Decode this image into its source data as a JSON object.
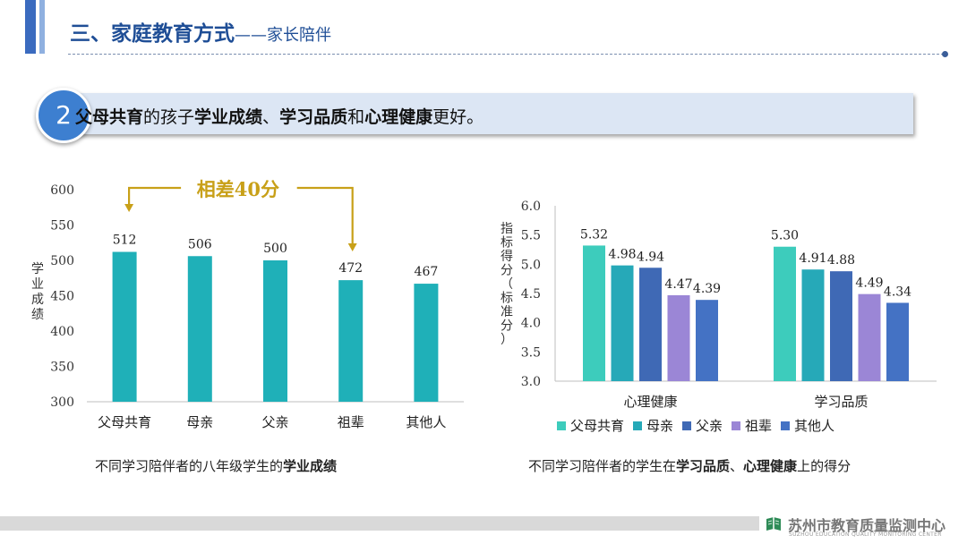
{
  "header": {
    "title": "三、家庭教育方式",
    "subtitle": "——家长陪伴"
  },
  "banner": {
    "number": "2",
    "parts": [
      {
        "text": "父母共育",
        "bold": true
      },
      {
        "text": "的孩子",
        "bold": false
      },
      {
        "text": "学业成绩",
        "bold": true
      },
      {
        "text": "、",
        "bold": false
      },
      {
        "text": "学习品质",
        "bold": true
      },
      {
        "text": "和",
        "bold": false
      },
      {
        "text": "心理健康",
        "bold": true
      },
      {
        "text": "更好。",
        "bold": false
      }
    ]
  },
  "chart_data": [
    {
      "type": "bar",
      "categories": [
        "父母共育",
        "母亲",
        "父亲",
        "祖辈",
        "其他人"
      ],
      "values": [
        512,
        506,
        500,
        472,
        467
      ],
      "ylabel": "学业成绩",
      "ylim": [
        300,
        600
      ],
      "yticks": [
        "300",
        "350",
        "400",
        "450",
        "500",
        "550",
        "600"
      ],
      "data_labels": [
        "512",
        "506",
        "500",
        "472",
        "467"
      ],
      "annotation": {
        "prefix": "相差",
        "number": "40",
        "suffix": "分"
      },
      "color": "#1fb0b8",
      "grid": false
    },
    {
      "type": "bar",
      "categories": [
        "心理健康",
        "学习品质"
      ],
      "series": [
        {
          "name": "父母共育",
          "values": [
            5.32,
            5.3
          ],
          "labels": [
            "5.32",
            "5.30"
          ],
          "color": "#3dccbc"
        },
        {
          "name": "母亲",
          "values": [
            4.98,
            4.91
          ],
          "labels": [
            "4.98",
            "4.91"
          ],
          "color": "#26a9b8"
        },
        {
          "name": "父亲",
          "values": [
            4.94,
            4.88
          ],
          "labels": [
            "4.94",
            "4.88"
          ],
          "color": "#3f69b5"
        },
        {
          "name": "祖辈",
          "values": [
            4.47,
            4.49
          ],
          "labels": [
            "4.47",
            "4.49"
          ],
          "color": "#9b86d6"
        },
        {
          "name": "其他人",
          "values": [
            4.39,
            4.34
          ],
          "labels": [
            "4.39",
            "4.34"
          ],
          "color": "#4472c4"
        }
      ],
      "ylabel": "指标得分（标准分）",
      "ylim": [
        3.0,
        6.0
      ],
      "yticks": [
        "3.0",
        "3.5",
        "4.0",
        "4.5",
        "5.0",
        "5.5",
        "6.0"
      ],
      "legend": "bottom",
      "grid": false
    }
  ],
  "captions": {
    "left": {
      "normal": "不同学习陪伴者的八年级学生的",
      "bold": "学业成绩"
    },
    "right": {
      "p1": "不同学习陪伴者的学生在",
      "b1": "学习品质",
      "p2": "、",
      "b2": "心理健康",
      "p3": "上的得分"
    }
  },
  "footer": {
    "logo_text": "苏州市教育质量监测中心",
    "logo_sub": "SUZHOU EDUCATION QUALITY MONITORING CENTER"
  }
}
